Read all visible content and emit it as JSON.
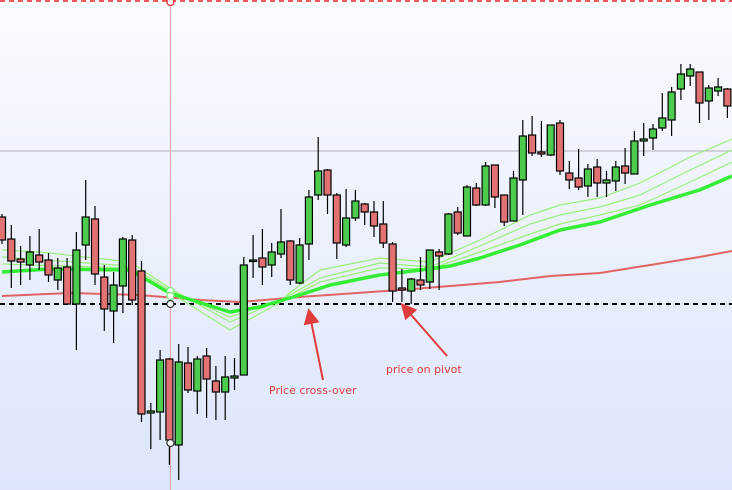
{
  "chart_data": {
    "type": "candlestick",
    "title": "",
    "xlabel": "",
    "ylabel": "",
    "grid": false,
    "colors": {
      "up": "#4ccb4c",
      "down": "#e27272",
      "ma_slow": "#e06464",
      "ma_fast": "#33ee33",
      "ma_light": "#99f07a",
      "pivot": "#000000",
      "top_level": "#ee2222"
    },
    "candles_ohlc": [
      [
        283,
        286,
        256,
        260
      ],
      [
        261,
        275,
        212,
        239
      ],
      [
        241,
        254,
        215,
        238
      ],
      [
        235,
        264,
        220,
        248
      ],
      [
        245,
        271,
        230,
        238
      ],
      [
        240,
        247,
        218,
        225
      ],
      [
        220,
        242,
        210,
        232
      ],
      [
        233,
        242,
        195,
        196
      ],
      [
        196,
        268,
        150,
        250
      ],
      [
        255,
        320,
        240,
        283
      ],
      [
        281,
        294,
        215,
        226
      ],
      [
        223,
        235,
        169,
        191
      ],
      [
        189,
        228,
        157,
        215
      ],
      [
        214,
        263,
        187,
        261
      ],
      [
        260,
        265,
        195,
        200
      ],
      [
        229,
        239,
        78,
        86
      ],
      [
        87,
        97,
        51,
        89
      ],
      [
        88,
        150,
        60,
        140
      ],
      [
        141,
        142,
        35,
        60
      ],
      [
        55,
        156,
        20,
        138
      ],
      [
        137,
        153,
        107,
        110
      ],
      [
        109,
        144,
        86,
        141
      ],
      [
        144,
        152,
        82,
        121
      ],
      [
        119,
        134,
        80,
        108
      ],
      [
        108,
        144,
        80,
        123
      ],
      [
        122,
        142,
        110,
        124
      ],
      [
        125,
        243,
        125,
        235
      ],
      [
        239,
        265,
        222,
        240
      ],
      [
        242,
        271,
        215,
        233
      ],
      [
        235,
        257,
        223,
        248
      ],
      [
        246,
        291,
        242,
        258
      ],
      [
        259,
        260,
        215,
        220
      ],
      [
        217,
        262,
        216,
        255
      ],
      [
        256,
        310,
        240,
        303
      ],
      [
        305,
        363,
        300,
        329
      ],
      [
        330,
        331,
        286,
        305
      ],
      [
        305,
        307,
        241,
        257
      ],
      [
        255,
        311,
        253,
        282
      ],
      [
        282,
        310,
        279,
        299
      ],
      [
        296,
        297,
        275,
        288
      ],
      [
        288,
        299,
        263,
        274
      ],
      [
        276,
        299,
        252,
        257
      ],
      [
        256,
        258,
        198,
        209
      ],
      [
        212,
        231,
        198,
        210
      ],
      [
        209,
        222,
        196,
        221
      ],
      [
        220,
        243,
        210,
        215
      ],
      [
        218,
        250,
        211,
        250
      ],
      [
        248,
        251,
        210,
        244
      ],
      [
        246,
        287,
        245,
        286
      ],
      [
        288,
        293,
        265,
        267
      ],
      [
        264,
        315,
        264,
        313
      ],
      [
        312,
        317,
        294,
        295
      ],
      [
        295,
        338,
        294,
        334
      ],
      [
        335,
        335,
        292,
        303
      ],
      [
        305,
        305,
        274,
        278
      ],
      [
        279,
        329,
        279,
        322
      ],
      [
        320,
        380,
        285,
        364
      ],
      [
        365,
        384,
        344,
        347
      ],
      [
        348,
        379,
        343,
        346
      ],
      [
        345,
        375,
        344,
        375
      ],
      [
        377,
        380,
        325,
        329
      ],
      [
        327,
        339,
        311,
        320
      ],
      [
        322,
        351,
        310,
        313
      ],
      [
        314,
        336,
        303,
        331
      ],
      [
        333,
        341,
        303,
        317
      ],
      [
        317,
        329,
        303,
        320
      ],
      [
        319,
        339,
        309,
        333
      ],
      [
        334,
        352,
        316,
        327
      ],
      [
        326,
        369,
        326,
        359
      ],
      [
        359,
        377,
        344,
        361
      ],
      [
        362,
        376,
        350,
        371
      ],
      [
        372,
        407,
        369,
        382
      ],
      [
        380,
        413,
        364,
        408
      ],
      [
        411,
        436,
        400,
        426
      ],
      [
        424,
        436,
        414,
        431
      ],
      [
        428,
        428,
        377,
        397
      ],
      [
        399,
        415,
        380,
        412
      ],
      [
        409,
        422,
        404,
        413
      ],
      [
        411,
        412,
        382,
        394
      ]
    ],
    "moving_averages": [
      {
        "style": "slow",
        "points": [
          [
            0,
            204
          ],
          [
            7.3,
            207
          ],
          [
            14.8,
            205
          ],
          [
            21.3,
            200
          ],
          [
            25.6,
            198
          ],
          [
            32,
            203
          ],
          [
            42.8,
            210
          ],
          [
            48.2,
            214
          ],
          [
            53.5,
            218
          ],
          [
            59,
            224
          ],
          [
            64.3,
            227
          ],
          [
            69.7,
            235
          ],
          [
            75,
            243
          ],
          [
            78.5,
            249
          ]
        ]
      },
      {
        "style": "light",
        "points": [
          [
            0,
            250
          ],
          [
            4.1,
            248
          ],
          [
            13.8,
            238
          ],
          [
            18,
            212
          ],
          [
            24.5,
            178
          ],
          [
            30,
            200
          ],
          [
            32,
            215
          ],
          [
            34.2,
            230
          ],
          [
            40.6,
            242
          ],
          [
            46,
            238
          ],
          [
            51.4,
            260
          ],
          [
            56.8,
            285
          ],
          [
            60,
            295
          ],
          [
            64.3,
            302
          ],
          [
            68.6,
            317
          ],
          [
            74,
            343
          ],
          [
            78.5,
            361
          ]
        ]
      },
      {
        "style": "light",
        "points": [
          [
            0,
            243
          ],
          [
            13.8,
            234
          ],
          [
            18,
            210
          ],
          [
            24.5,
            183
          ],
          [
            30,
            200
          ],
          [
            34.2,
            222
          ],
          [
            40.6,
            237
          ],
          [
            46,
            233
          ],
          [
            51.4,
            254
          ],
          [
            56.8,
            276
          ],
          [
            60,
            285
          ],
          [
            64.3,
            293
          ],
          [
            68.6,
            305
          ],
          [
            74,
            330
          ],
          [
            78.5,
            350
          ]
        ]
      },
      {
        "style": "light",
        "points": [
          [
            0,
            236
          ],
          [
            13.8,
            232
          ],
          [
            18,
            208
          ],
          [
            24.5,
            170
          ],
          [
            30,
            198
          ],
          [
            34.2,
            218
          ],
          [
            40.6,
            232
          ],
          [
            46,
            231
          ],
          [
            51.4,
            248
          ],
          [
            56.8,
            266
          ],
          [
            60,
            276
          ],
          [
            64.3,
            285
          ],
          [
            68.6,
            295
          ],
          [
            74,
            318
          ],
          [
            78.5,
            338
          ]
        ]
      },
      {
        "style": "fast",
        "points": [
          [
            0,
            228
          ],
          [
            5.2,
            231
          ],
          [
            13.8,
            230
          ],
          [
            18,
            207
          ],
          [
            24.5,
            188
          ],
          [
            27.7,
            193
          ],
          [
            32,
            205
          ],
          [
            35.3,
            215
          ],
          [
            40.6,
            225
          ],
          [
            45,
            230
          ],
          [
            48.2,
            234
          ],
          [
            51.4,
            242
          ],
          [
            55.7,
            255
          ],
          [
            60,
            270
          ],
          [
            64.3,
            278
          ],
          [
            69.7,
            295
          ],
          [
            75,
            310
          ],
          [
            78.5,
            324
          ]
        ]
      }
    ],
    "pivot_level": 196,
    "crosshair": {
      "index": 18,
      "price": 349
    },
    "top_level": 499,
    "annotations": [
      {
        "text": "Price cross-over",
        "points_to_index": 33,
        "points_to_price": 196
      },
      {
        "text": "price on pivot",
        "points_to_index": 43,
        "points_to_price": 196
      }
    ]
  }
}
